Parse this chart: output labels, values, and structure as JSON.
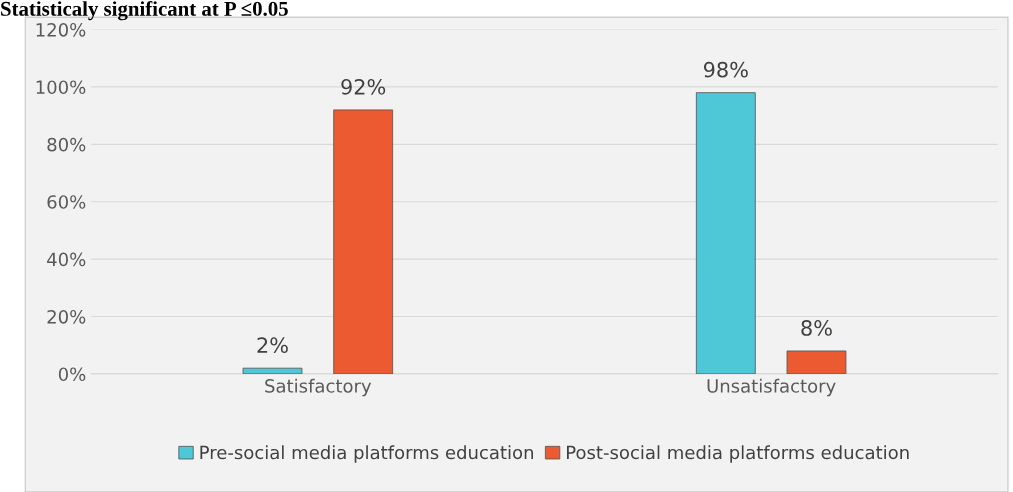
{
  "chart_data": {
    "type": "bar",
    "title": "Statisticaly significant at P ≤0.05",
    "categories": [
      "Satisfactory",
      "Unsatisfactory"
    ],
    "series": [
      {
        "name": "Pre-social media platforms education",
        "color": "#4ec8d6",
        "values": [
          2,
          98
        ],
        "value_labels": [
          "2%",
          "98%"
        ]
      },
      {
        "name": "Post-social media platforms education",
        "color": "#ec5a32",
        "values": [
          92,
          8
        ],
        "value_labels": [
          "92%",
          "8%"
        ]
      }
    ],
    "ylim": [
      0,
      120
    ],
    "yticks": [
      {
        "value": 0,
        "label": "0%"
      },
      {
        "value": 20,
        "label": "20%"
      },
      {
        "value": 40,
        "label": "40%"
      },
      {
        "value": 60,
        "label": "60%"
      },
      {
        "value": 80,
        "label": "80%"
      },
      {
        "value": 100,
        "label": "100%"
      },
      {
        "value": 120,
        "label": "120%"
      }
    ],
    "grid": "y",
    "legend": "bottom"
  }
}
